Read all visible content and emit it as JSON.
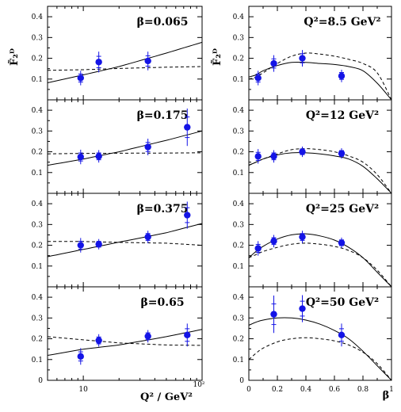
{
  "figure": {
    "left_ylabel": "F̃₂ᴰ",
    "right_ylabel": "F̃₂ᴰ",
    "left_xlabel": "Q² / GeV²",
    "right_xlabel": "β"
  },
  "colors": {
    "data_marker": "#1414e6",
    "error_bar": "#1414e6",
    "curve": "#000000"
  },
  "chart_data": [
    {
      "type": "scatter",
      "column": "left",
      "panel": 0,
      "label": "β=0.065",
      "xscale": "log",
      "xlim": [
        5,
        100
      ],
      "ylim": [
        0,
        0.45
      ],
      "yticks": [
        0,
        0.1,
        0.2,
        0.3,
        0.4
      ],
      "ytick_labels": [
        "0",
        "0.1",
        "0.2",
        "0.3",
        "0.4"
      ],
      "points": [
        {
          "x": 9.5,
          "y": 0.105,
          "err": 0.035
        },
        {
          "x": 13.5,
          "y": 0.182,
          "err": 0.05
        },
        {
          "x": 35,
          "y": 0.187,
          "err": 0.045
        }
      ],
      "curves": [
        {
          "style": "solid",
          "x": [
            5,
            10,
            20,
            50,
            100
          ],
          "y": [
            0.082,
            0.12,
            0.16,
            0.225,
            0.277
          ]
        },
        {
          "style": "dashed",
          "x": [
            5,
            10,
            20,
            50,
            100
          ],
          "y": [
            0.142,
            0.145,
            0.151,
            0.157,
            0.16
          ]
        }
      ]
    },
    {
      "type": "scatter",
      "column": "left",
      "panel": 1,
      "label": "β=0.175",
      "xscale": "log",
      "xlim": [
        5,
        100
      ],
      "ylim": [
        0,
        0.45
      ],
      "yticks": [
        0,
        0.1,
        0.2,
        0.3,
        0.4
      ],
      "ytick_labels": [
        "0",
        "0.1",
        "0.2",
        "0.3",
        "0.4"
      ],
      "points": [
        {
          "x": 9.5,
          "y": 0.175,
          "err": 0.035
        },
        {
          "x": 13.5,
          "y": 0.178,
          "err": 0.03
        },
        {
          "x": 35,
          "y": 0.223,
          "err": 0.04
        },
        {
          "x": 75,
          "y": 0.318,
          "err": 0.09
        }
      ],
      "curves": [
        {
          "style": "solid",
          "x": [
            5,
            10,
            20,
            50,
            100
          ],
          "y": [
            0.135,
            0.165,
            0.2,
            0.255,
            0.3
          ]
        },
        {
          "style": "dashed",
          "x": [
            5,
            10,
            20,
            50,
            100
          ],
          "y": [
            0.19,
            0.192,
            0.193,
            0.194,
            0.195
          ]
        }
      ]
    },
    {
      "type": "scatter",
      "column": "left",
      "panel": 2,
      "label": "β=0.375",
      "xscale": "log",
      "xlim": [
        5,
        100
      ],
      "ylim": [
        0,
        0.45
      ],
      "yticks": [
        0,
        0.1,
        0.2,
        0.3,
        0.4
      ],
      "ytick_labels": [
        "0",
        "0.1",
        "0.2",
        "0.3",
        "0.4"
      ],
      "points": [
        {
          "x": 9.5,
          "y": 0.2,
          "err": 0.035
        },
        {
          "x": 13.5,
          "y": 0.205,
          "err": 0.025
        },
        {
          "x": 35,
          "y": 0.24,
          "err": 0.03
        },
        {
          "x": 75,
          "y": 0.345,
          "err": 0.065
        }
      ],
      "curves": [
        {
          "style": "solid",
          "x": [
            5,
            10,
            20,
            50,
            100
          ],
          "y": [
            0.145,
            0.18,
            0.215,
            0.26,
            0.305
          ]
        },
        {
          "style": "dashed",
          "x": [
            5,
            10,
            20,
            50,
            100
          ],
          "y": [
            0.218,
            0.218,
            0.214,
            0.21,
            0.2
          ]
        }
      ]
    },
    {
      "type": "scatter",
      "column": "left",
      "panel": 3,
      "label": "β=0.65",
      "xscale": "log",
      "xlim": [
        5,
        100
      ],
      "ylim": [
        0,
        0.45
      ],
      "yticks": [
        0,
        0.1,
        0.2,
        0.3,
        0.4
      ],
      "ytick_labels": [
        "0",
        "0.1",
        "0.2",
        "0.3",
        "0.4"
      ],
      "xticks": [
        10,
        100
      ],
      "xtick_labels": [
        "10",
        "10²"
      ],
      "points": [
        {
          "x": 9.5,
          "y": 0.115,
          "err": 0.04
        },
        {
          "x": 13.5,
          "y": 0.192,
          "err": 0.03
        },
        {
          "x": 35,
          "y": 0.212,
          "err": 0.03
        },
        {
          "x": 75,
          "y": 0.218,
          "err": 0.055
        }
      ],
      "curves": [
        {
          "style": "solid",
          "x": [
            5,
            10,
            20,
            50,
            100
          ],
          "y": [
            0.12,
            0.15,
            0.17,
            0.21,
            0.245
          ]
        },
        {
          "style": "dashed",
          "x": [
            5,
            10,
            20,
            50,
            100
          ],
          "y": [
            0.21,
            0.195,
            0.18,
            0.17,
            0.168
          ]
        }
      ]
    },
    {
      "type": "scatter",
      "column": "right",
      "panel": 0,
      "label": "Q²=8.5 GeV²",
      "xscale": "linear",
      "xlim": [
        0,
        1
      ],
      "ylim": [
        0,
        0.45
      ],
      "yticks": [
        0,
        0.1,
        0.2,
        0.3,
        0.4
      ],
      "ytick_labels": [
        "0",
        "0.1",
        "0.2",
        "0.3",
        "0.4"
      ],
      "points": [
        {
          "x": 0.065,
          "y": 0.105,
          "err": 0.035
        },
        {
          "x": 0.175,
          "y": 0.175,
          "err": 0.04
        },
        {
          "x": 0.375,
          "y": 0.2,
          "err": 0.04
        },
        {
          "x": 0.65,
          "y": 0.115,
          "err": 0.03
        }
      ],
      "curves": [
        {
          "style": "solid",
          "x": [
            0,
            0.05,
            0.1,
            0.2,
            0.3,
            0.4,
            0.5,
            0.6,
            0.7,
            0.8,
            0.9,
            1.0
          ],
          "y": [
            0.11,
            0.12,
            0.14,
            0.165,
            0.18,
            0.18,
            0.175,
            0.17,
            0.16,
            0.14,
            0.08,
            0
          ]
        },
        {
          "style": "dashed",
          "x": [
            0,
            0.05,
            0.1,
            0.2,
            0.3,
            0.4,
            0.5,
            0.6,
            0.7,
            0.8,
            0.9,
            1.0
          ],
          "y": [
            0.1,
            0.11,
            0.13,
            0.175,
            0.21,
            0.225,
            0.22,
            0.21,
            0.195,
            0.175,
            0.13,
            0
          ]
        }
      ]
    },
    {
      "type": "scatter",
      "column": "right",
      "panel": 1,
      "label": "Q²=12 GeV²",
      "xscale": "linear",
      "xlim": [
        0,
        1
      ],
      "ylim": [
        0,
        0.45
      ],
      "yticks": [
        0,
        0.1,
        0.2,
        0.3,
        0.4
      ],
      "ytick_labels": [
        "0",
        "0.1",
        "0.2",
        "0.3",
        "0.4"
      ],
      "points": [
        {
          "x": 0.065,
          "y": 0.178,
          "err": 0.035
        },
        {
          "x": 0.175,
          "y": 0.178,
          "err": 0.03
        },
        {
          "x": 0.375,
          "y": 0.2,
          "err": 0.025
        },
        {
          "x": 0.65,
          "y": 0.192,
          "err": 0.025
        }
      ],
      "curves": [
        {
          "style": "solid",
          "x": [
            0,
            0.05,
            0.1,
            0.2,
            0.3,
            0.4,
            0.5,
            0.6,
            0.7,
            0.8,
            0.9,
            1.0
          ],
          "y": [
            0.135,
            0.15,
            0.165,
            0.185,
            0.195,
            0.195,
            0.19,
            0.18,
            0.165,
            0.13,
            0.07,
            0
          ]
        },
        {
          "style": "dashed",
          "x": [
            0,
            0.05,
            0.1,
            0.2,
            0.3,
            0.4,
            0.5,
            0.6,
            0.7,
            0.8,
            0.9,
            1.0
          ],
          "y": [
            0.135,
            0.15,
            0.165,
            0.19,
            0.21,
            0.215,
            0.21,
            0.2,
            0.18,
            0.15,
            0.09,
            0
          ]
        }
      ]
    },
    {
      "type": "scatter",
      "column": "right",
      "panel": 2,
      "label": "Q²=25 GeV²",
      "xscale": "linear",
      "xlim": [
        0,
        1
      ],
      "ylim": [
        0,
        0.45
      ],
      "yticks": [
        0,
        0.1,
        0.2,
        0.3,
        0.4
      ],
      "ytick_labels": [
        "0",
        "0.1",
        "0.2",
        "0.3",
        "0.4"
      ],
      "points": [
        {
          "x": 0.065,
          "y": 0.185,
          "err": 0.035
        },
        {
          "x": 0.175,
          "y": 0.22,
          "err": 0.03
        },
        {
          "x": 0.375,
          "y": 0.24,
          "err": 0.03
        },
        {
          "x": 0.65,
          "y": 0.212,
          "err": 0.025
        }
      ],
      "curves": [
        {
          "style": "solid",
          "x": [
            0,
            0.05,
            0.1,
            0.2,
            0.3,
            0.4,
            0.5,
            0.6,
            0.7,
            0.8,
            0.9,
            1.0
          ],
          "y": [
            0.14,
            0.17,
            0.195,
            0.23,
            0.25,
            0.255,
            0.245,
            0.225,
            0.19,
            0.14,
            0.07,
            0
          ]
        },
        {
          "style": "dashed",
          "x": [
            0,
            0.05,
            0.1,
            0.2,
            0.3,
            0.4,
            0.5,
            0.6,
            0.7,
            0.8,
            0.9,
            1.0
          ],
          "y": [
            0.14,
            0.155,
            0.17,
            0.19,
            0.205,
            0.21,
            0.205,
            0.195,
            0.175,
            0.14,
            0.08,
            0
          ]
        }
      ]
    },
    {
      "type": "scatter",
      "column": "right",
      "panel": 3,
      "label": "Q²=50 GeV²",
      "xscale": "linear",
      "xlim": [
        0,
        1
      ],
      "ylim": [
        0,
        0.45
      ],
      "yticks": [
        0,
        0.1,
        0.2,
        0.3,
        0.4
      ],
      "ytick_labels": [
        "0",
        "0.1",
        "0.2",
        "0.3",
        "0.4"
      ],
      "xticks": [
        0,
        0.2,
        0.4,
        0.6,
        0.8,
        1
      ],
      "xtick_labels": [
        "0",
        "0.2",
        "0.4",
        "0.6",
        "0.8",
        "1"
      ],
      "points": [
        {
          "x": 0.175,
          "y": 0.318,
          "err": 0.09
        },
        {
          "x": 0.375,
          "y": 0.345,
          "err": 0.065
        },
        {
          "x": 0.65,
          "y": 0.218,
          "err": 0.055
        }
      ],
      "curves": [
        {
          "style": "solid",
          "x": [
            0,
            0.05,
            0.1,
            0.2,
            0.3,
            0.4,
            0.5,
            0.6,
            0.7,
            0.8,
            0.9,
            1.0
          ],
          "y": [
            0.265,
            0.28,
            0.29,
            0.3,
            0.3,
            0.29,
            0.27,
            0.24,
            0.2,
            0.14,
            0.07,
            0
          ]
        },
        {
          "style": "dashed",
          "x": [
            0,
            0.05,
            0.1,
            0.2,
            0.3,
            0.4,
            0.5,
            0.6,
            0.7,
            0.8,
            0.9,
            1.0
          ],
          "y": [
            0.1,
            0.13,
            0.155,
            0.185,
            0.2,
            0.205,
            0.2,
            0.19,
            0.17,
            0.135,
            0.08,
            0
          ]
        }
      ]
    }
  ]
}
